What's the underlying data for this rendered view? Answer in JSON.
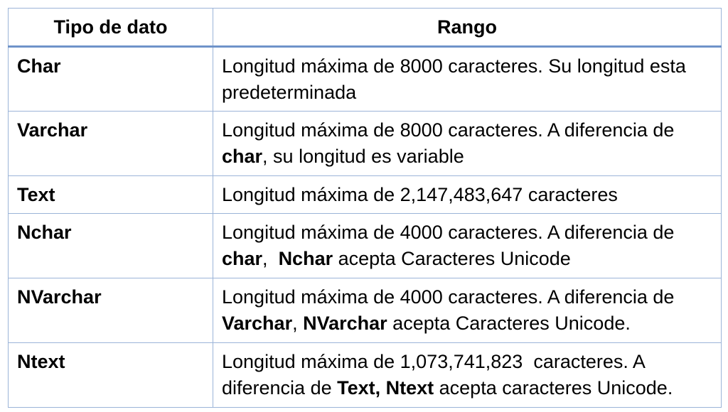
{
  "table": {
    "headers": [
      "Tipo de dato",
      "Rango"
    ],
    "rows": [
      {
        "type": "Char",
        "range_segments": [
          {
            "text": "Longitud máxima de 8000 caracteres. Su longitud esta predeterminada"
          }
        ]
      },
      {
        "type": "Varchar",
        "range_segments": [
          {
            "text": "Longitud máxima de 8000 caracteres. A diferencia de "
          },
          {
            "text": "char",
            "bold": true
          },
          {
            "text": ", su longitud es variable"
          }
        ]
      },
      {
        "type": "Text",
        "range_segments": [
          {
            "text": "Longitud máxima de 2,147,483,647 caracteres"
          }
        ]
      },
      {
        "type": "Nchar",
        "range_segments": [
          {
            "text": "Longitud máxima de 4000 caracteres. A diferencia de "
          },
          {
            "text": "char",
            "bold": true
          },
          {
            "text": ",  "
          },
          {
            "text": "Nchar",
            "bold": true
          },
          {
            "text": " acepta Caracteres Unicode"
          }
        ]
      },
      {
        "type": "NVarchar",
        "range_segments": [
          {
            "text": "Longitud máxima de 4000 caracteres. A diferencia de "
          },
          {
            "text": "Varchar",
            "bold": true
          },
          {
            "text": ", "
          },
          {
            "text": "NVarchar",
            "bold": true
          },
          {
            "text": " acepta Caracteres Unicode."
          }
        ]
      },
      {
        "type": "Ntext",
        "range_segments": [
          {
            "text": "Longitud máxima de 1,073,741,823  caracteres. A diferencia de "
          },
          {
            "text": "Text, Ntext",
            "bold": true
          },
          {
            "text": " acepta caracteres Unicode."
          }
        ]
      }
    ]
  }
}
